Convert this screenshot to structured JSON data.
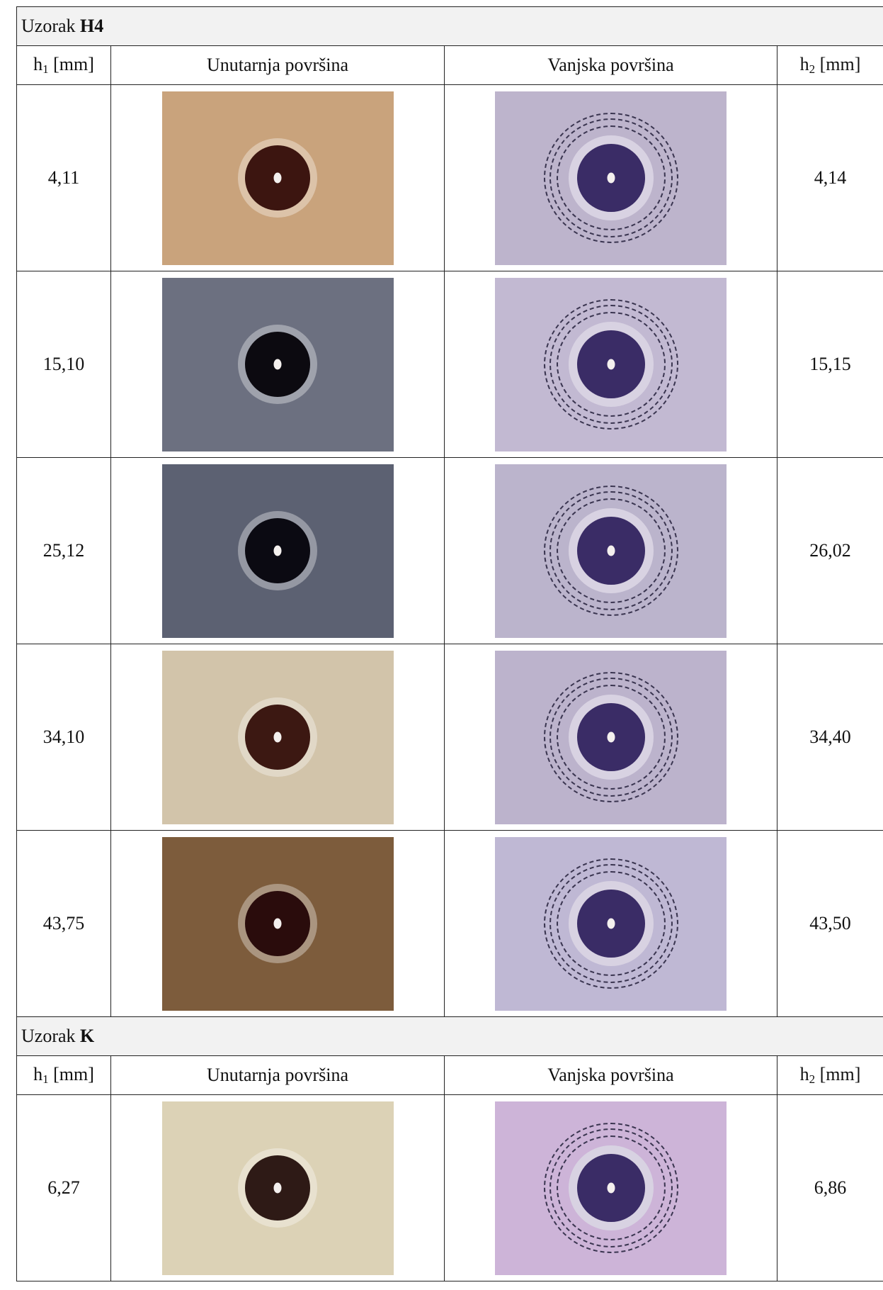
{
  "sections": [
    {
      "title": {
        "label": "Uzorak",
        "sample": "H4"
      },
      "header": {
        "h1": {
          "symbol": "h",
          "subscript": "1",
          "unit": "[mm]"
        },
        "inner": "Unutarnja površina",
        "outer": "Vanjska površina",
        "h2": {
          "symbol": "h",
          "subscript": "2",
          "unit": "[mm]"
        }
      },
      "rows": [
        {
          "h1": "4,11",
          "h2": "4,14"
        },
        {
          "h1": "15,10",
          "h2": "15,15"
        },
        {
          "h1": "25,12",
          "h2": "26,02"
        },
        {
          "h1": "34,10",
          "h2": "34,40"
        },
        {
          "h1": "43,75",
          "h2": "43,50"
        }
      ]
    },
    {
      "title": {
        "label": "Uzorak",
        "sample": "K"
      },
      "header": {
        "h1": {
          "symbol": "h",
          "subscript": "1",
          "unit": "[mm]"
        },
        "inner": "Unutarnja površina",
        "outer": "Vanjska površina",
        "h2": {
          "symbol": "h",
          "subscript": "2",
          "unit": "[mm]"
        }
      },
      "rows": [
        {
          "h1": "6,27",
          "h2": "6,86"
        }
      ]
    }
  ]
}
